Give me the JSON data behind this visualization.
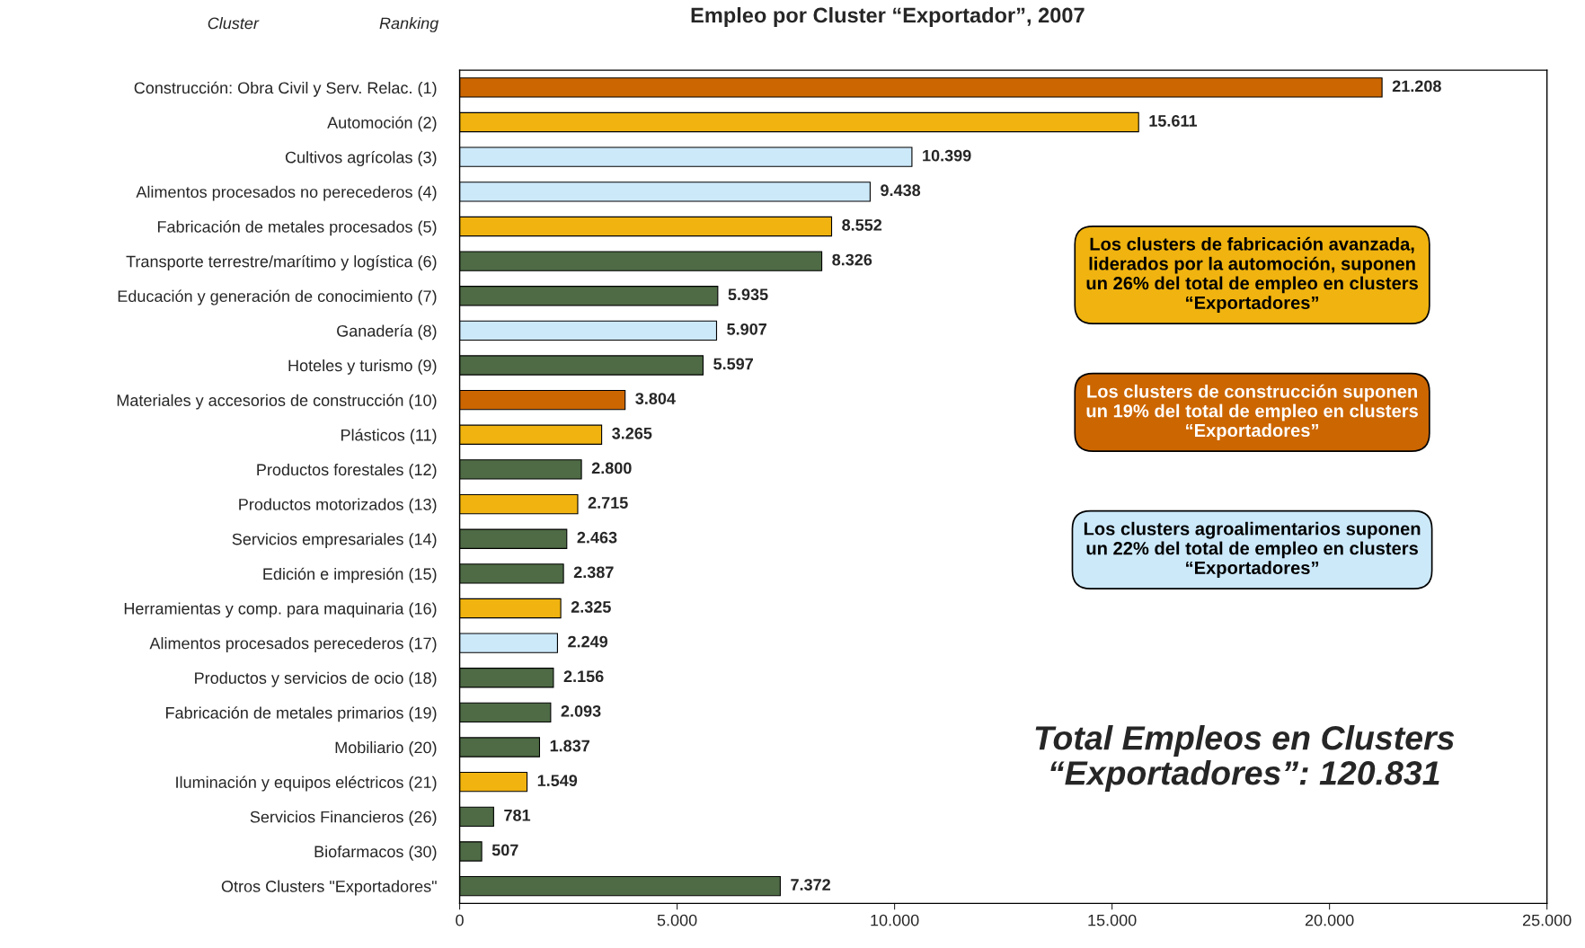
{
  "chart_data": {
    "type": "bar",
    "orientation": "horizontal",
    "title": "Empleo por Cluster “Exportador”, 2007",
    "categories": [
      "Construcción: Obra Civil y Serv. Relac. (1)",
      "Automoción (2)",
      "Cultivos agrícolas (3)",
      "Alimentos procesados no perecederos (4)",
      "Fabricación de metales procesados (5)",
      "Transporte terrestre/marítimo y logística (6)",
      "Educación y generación de conocimiento (7)",
      "Ganadería (8)",
      "Hoteles y turismo (9)",
      "Materiales y accesorios de construcción (10)",
      "Plásticos (11)",
      "Productos forestales (12)",
      "Productos motorizados (13)",
      "Servicios empresariales (14)",
      "Edición e impresión (15)",
      "Herramientas y comp. para maquinaria (16)",
      "Alimentos procesados perecederos (17)",
      "Productos y servicios de ocio (18)",
      "Fabricación de metales primarios (19)",
      "Mobiliario (20)",
      "Iluminación y equipos eléctricos (21)",
      "Servicios Financieros (26)",
      "Biofarmacos (30)",
      "Otros Clusters \"Exportadores\""
    ],
    "values": [
      21208,
      15611,
      10399,
      9438,
      8552,
      8326,
      5935,
      5907,
      5597,
      3804,
      3265,
      2800,
      2715,
      2463,
      2387,
      2325,
      2249,
      2156,
      2093,
      1837,
      1549,
      781,
      507,
      7372
    ],
    "value_labels": [
      "21.208",
      "15.611",
      "10.399",
      "9.438",
      "8.552",
      "8.326",
      "5.935",
      "5.907",
      "5.597",
      "3.804",
      "3.265",
      "2.800",
      "2.715",
      "2.463",
      "2.387",
      "2.325",
      "2.249",
      "2.156",
      "2.093",
      "1.837",
      "1.549",
      "781",
      "507",
      "7.372"
    ],
    "colors": [
      "#cc6600",
      "#f0b30f",
      "#cce9fa",
      "#cce9fa",
      "#f0b30f",
      "#4e6b45",
      "#4e6b45",
      "#cce9fa",
      "#4e6b45",
      "#cc6600",
      "#f0b30f",
      "#4e6b45",
      "#f0b30f",
      "#4e6b45",
      "#4e6b45",
      "#f0b30f",
      "#cce9fa",
      "#4e6b45",
      "#4e6b45",
      "#4e6b45",
      "#f0b30f",
      "#4e6b45",
      "#4e6b45",
      "#4e6b45"
    ],
    "xlim": [
      0,
      25000
    ],
    "xticks": [
      0,
      {
        "value": 5000,
        "label": "5.000"
      },
      {
        "value": 10000,
        "label": "10.000"
      },
      {
        "value": 15000,
        "label": "15.000"
      },
      {
        "value": 20000,
        "label": "20.000"
      },
      {
        "value": 25000,
        "label": "25.000"
      }
    ],
    "grid": false,
    "legend": false,
    "annotations": [
      "Cluster",
      "Ranking",
      "Los clusters de fabricación avanzada,\nliderados por la automoción, suponen\nun 26% del total de empleo en clusters\n“Exportadores”",
      "Los clusters de construcción suponen\nun 19% del total de empleo en clusters\n“Exportadores”",
      "Los clusters agroalimentarios suponen\nun 22% del total de empleo en clusters\n“Exportadores”",
      "Total Empleos en Clusters\n“Exportadores”: 120.831"
    ]
  }
}
